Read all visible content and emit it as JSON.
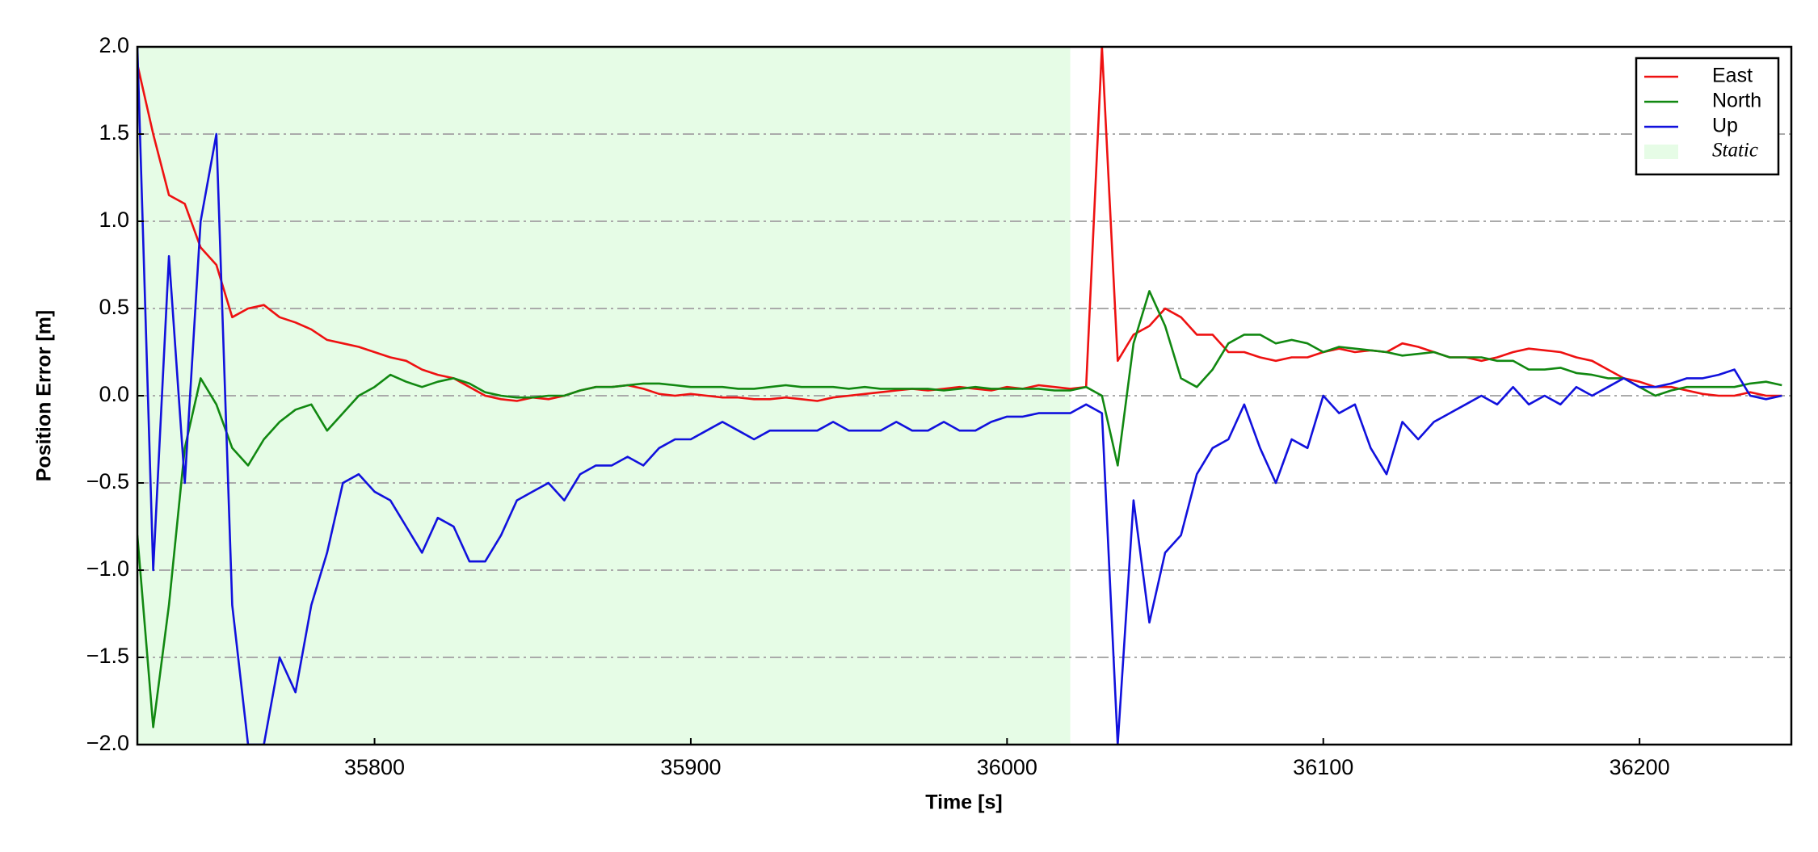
{
  "chart_data": {
    "type": "line",
    "xlabel": "Time [s]",
    "ylabel": "Position Error [m]",
    "xlim": [
      35725,
      36248
    ],
    "ylim": [
      -2,
      2
    ],
    "xticks": [
      35800,
      35900,
      36000,
      36100,
      36200
    ],
    "yticks": [
      {
        "value": -2,
        "label": "−2.0"
      },
      {
        "value": -1.5,
        "label": "−1.5"
      },
      {
        "value": -1,
        "label": "−1.0"
      },
      {
        "value": -0.5,
        "label": "−0.5"
      },
      {
        "value": 0,
        "label": "0.0"
      },
      0.5,
      {
        "value": 1,
        "label": "1.0"
      },
      1.5,
      {
        "value": 2,
        "label": "2.0"
      }
    ],
    "grid": true,
    "legend": "upper right",
    "static_label": "Static",
    "static_color": "#e6fce6",
    "static_span": [
      35725,
      36020
    ],
    "x": [
      35725,
      35730,
      35735,
      35740,
      35745,
      35750,
      35755,
      35760,
      35765,
      35770,
      35775,
      35780,
      35785,
      35790,
      35795,
      35800,
      35805,
      35810,
      35815,
      35820,
      35825,
      35830,
      35835,
      35840,
      35845,
      35850,
      35855,
      35860,
      35865,
      35870,
      35875,
      35880,
      35885,
      35890,
      35895,
      35900,
      35905,
      35910,
      35915,
      35920,
      35925,
      35930,
      35935,
      35940,
      35945,
      35950,
      35955,
      35960,
      35965,
      35970,
      35975,
      35980,
      35985,
      35990,
      35995,
      36000,
      36005,
      36010,
      36015,
      36020,
      36025,
      36030,
      36035,
      36040,
      36045,
      36050,
      36055,
      36060,
      36065,
      36070,
      36075,
      36080,
      36085,
      36090,
      36095,
      36100,
      36105,
      36110,
      36115,
      36120,
      36125,
      36130,
      36135,
      36140,
      36145,
      36150,
      36155,
      36160,
      36165,
      36170,
      36175,
      36180,
      36185,
      36190,
      36195,
      36200,
      36205,
      36210,
      36215,
      36220,
      36225,
      36230,
      36235,
      36240,
      36245
    ],
    "series": [
      {
        "name": "East",
        "color": "#ee1111",
        "values": [
          1.9,
          1.5,
          1.15,
          1.1,
          0.85,
          0.75,
          0.45,
          0.5,
          0.52,
          0.45,
          0.42,
          0.38,
          0.32,
          0.3,
          0.28,
          0.25,
          0.22,
          0.2,
          0.15,
          0.12,
          0.1,
          0.05,
          0,
          -0.02,
          -0.03,
          -0.01,
          -0.02,
          0,
          0.03,
          0.05,
          0.05,
          0.06,
          0.04,
          0.01,
          0,
          0.01,
          0,
          -0.01,
          -0.01,
          -0.02,
          -0.02,
          -0.01,
          -0.02,
          -0.03,
          -0.01,
          0,
          0.01,
          0.02,
          0.03,
          0.04,
          0.03,
          0.04,
          0.05,
          0.04,
          0.03,
          0.05,
          0.04,
          0.06,
          0.05,
          0.04,
          0.05,
          2.0,
          0.2,
          0.35,
          0.4,
          0.5,
          0.45,
          0.35,
          0.35,
          0.25,
          0.25,
          0.22,
          0.2,
          0.22,
          0.22,
          0.25,
          0.27,
          0.25,
          0.26,
          0.25,
          0.3,
          0.28,
          0.25,
          0.22,
          0.22,
          0.2,
          0.22,
          0.25,
          0.27,
          0.26,
          0.25,
          0.22,
          0.2,
          0.15,
          0.1,
          0.08,
          0.05,
          0.05,
          0.03,
          0.01,
          0,
          0,
          0.02,
          0,
          0
        ]
      },
      {
        "name": "North",
        "color": "#118811",
        "values": [
          -0.8,
          -1.9,
          -1.2,
          -0.3,
          0.1,
          -0.05,
          -0.3,
          -0.4,
          -0.25,
          -0.15,
          -0.08,
          -0.05,
          -0.2,
          -0.1,
          0,
          0.05,
          0.12,
          0.08,
          0.05,
          0.08,
          0.1,
          0.07,
          0.02,
          0,
          -0.01,
          -0.01,
          0,
          0,
          0.03,
          0.05,
          0.05,
          0.06,
          0.07,
          0.07,
          0.06,
          0.05,
          0.05,
          0.05,
          0.04,
          0.04,
          0.05,
          0.06,
          0.05,
          0.05,
          0.05,
          0.04,
          0.05,
          0.04,
          0.04,
          0.04,
          0.04,
          0.03,
          0.04,
          0.05,
          0.04,
          0.04,
          0.04,
          0.04,
          0.03,
          0.03,
          0.05,
          0,
          -0.4,
          0.3,
          0.6,
          0.4,
          0.1,
          0.05,
          0.15,
          0.3,
          0.35,
          0.35,
          0.3,
          0.32,
          0.3,
          0.25,
          0.28,
          0.27,
          0.26,
          0.25,
          0.23,
          0.24,
          0.25,
          0.22,
          0.22,
          0.22,
          0.2,
          0.2,
          0.15,
          0.15,
          0.16,
          0.13,
          0.12,
          0.1,
          0.1,
          0.05,
          0,
          0.03,
          0.05,
          0.05,
          0.05,
          0.05,
          0.07,
          0.08,
          0.06
        ]
      },
      {
        "name": "Up",
        "color": "#1111dd",
        "values": [
          2.0,
          -1.0,
          0.8,
          -0.5,
          1.0,
          1.5,
          -1.2,
          -2.0,
          -2.0,
          -1.5,
          -1.7,
          -1.2,
          -0.9,
          -0.5,
          -0.45,
          -0.55,
          -0.6,
          -0.75,
          -0.9,
          -0.7,
          -0.75,
          -0.95,
          -0.95,
          -0.8,
          -0.6,
          -0.55,
          -0.5,
          -0.6,
          -0.45,
          -0.4,
          -0.4,
          -0.35,
          -0.4,
          -0.3,
          -0.25,
          -0.25,
          -0.2,
          -0.15,
          -0.2,
          -0.25,
          -0.2,
          -0.2,
          -0.2,
          -0.2,
          -0.15,
          -0.2,
          -0.2,
          -0.2,
          -0.15,
          -0.2,
          -0.2,
          -0.15,
          -0.2,
          -0.2,
          -0.15,
          -0.12,
          -0.12,
          -0.1,
          -0.1,
          -0.1,
          -0.05,
          -0.1,
          -2.0,
          -0.6,
          -1.3,
          -0.9,
          -0.8,
          -0.45,
          -0.3,
          -0.25,
          -0.05,
          -0.3,
          -0.5,
          -0.25,
          -0.3,
          0,
          -0.1,
          -0.05,
          -0.3,
          -0.45,
          -0.15,
          -0.25,
          -0.15,
          -0.1,
          -0.05,
          0,
          -0.05,
          0.05,
          -0.05,
          0,
          -0.05,
          0.05,
          0,
          0.05,
          0.1,
          0.05,
          0.05,
          0.07,
          0.1,
          0.1,
          0.12,
          0.15,
          0,
          -0.02,
          0
        ]
      }
    ]
  }
}
